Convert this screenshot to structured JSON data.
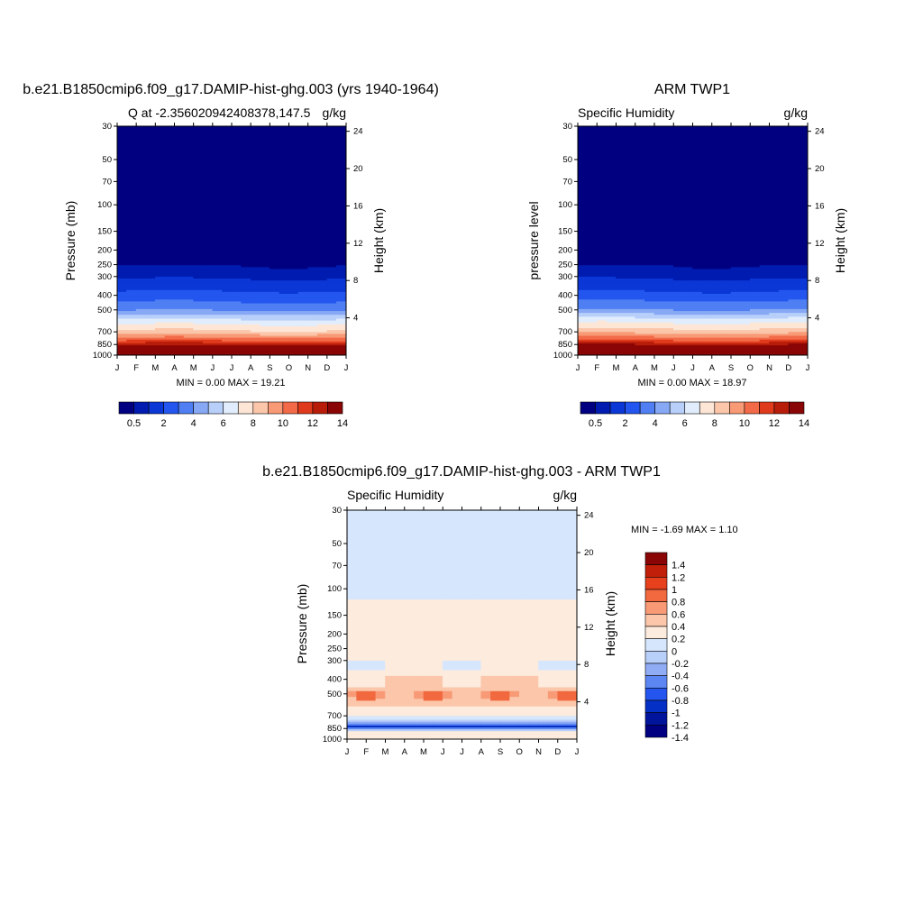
{
  "colors": {
    "scalar_palette": [
      "#000080",
      "#001cb0",
      "#0a37d6",
      "#2356ef",
      "#4f7ff3",
      "#86a8f5",
      "#b8cffa",
      "#e1edfc",
      "#fde6d6",
      "#fbc6aa",
      "#f89a76",
      "#f26a48",
      "#e03a1c",
      "#b81d0a",
      "#8a0505"
    ],
    "diff_palette": [
      "#000080",
      "#00159b",
      "#0530c6",
      "#2456ef",
      "#5c86f2",
      "#8facf5",
      "#b8cffa",
      "#d6e7fd",
      "#fdebdd",
      "#fbc6aa",
      "#f89a76",
      "#f2683f",
      "#e6401c",
      "#c11f09",
      "#8a0505"
    ]
  },
  "panels": [
    {
      "title": "b.e21.B1850cmip6.f09_g17.DAMIP-hist-ghg.003 (yrs 1940-1964)",
      "left_label": "Q at -2.356020942408378,147.5",
      "right_label": "g/kg",
      "ylabel": "Pressure (mb)",
      "ylabel_right": "Height (km)",
      "minmax_text": "MIN =   0.00 MAX =  19.21"
    },
    {
      "title": "ARM TWP1",
      "left_label": "Specific Humidity",
      "right_label": "g/kg",
      "ylabel": "pressure level",
      "ylabel_right": "Height (km)",
      "minmax_text": "MIN =   0.00 MAX =  18.97"
    },
    {
      "title": "b.e21.B1850cmip6.f09_g17.DAMIP-hist-ghg.003 - ARM TWP1",
      "left_label": "Specific Humidity",
      "right_label": "g/kg",
      "ylabel": "Pressure (mb)",
      "ylabel_right": "Height (km)",
      "minmax_text": "MIN =  -1.69 MAX =   1.10"
    }
  ],
  "chart_data": [
    {
      "type": "heatmap",
      "title": "b.e21.B1850cmip6.f09_g17.DAMIP-hist-ghg.003 (yrs 1940-1964)",
      "variable": "Q at -2.356020942408378,147.5",
      "units": "g/kg",
      "xlabel": "",
      "ylabel": "Pressure (mb)",
      "ylabel_right": "Height (km)",
      "x_ticks": [
        "J",
        "F",
        "M",
        "A",
        "M",
        "J",
        "J",
        "A",
        "S",
        "O",
        "N",
        "D",
        "J"
      ],
      "y_ticks": [
        30,
        50,
        70,
        100,
        150,
        200,
        250,
        300,
        400,
        500,
        700,
        850,
        1000
      ],
      "y_ticks_right": [
        24,
        20,
        16,
        12,
        8,
        4
      ],
      "ylim": [
        30,
        1000
      ],
      "y_scale": "log",
      "min": 0.0,
      "max": 19.21,
      "levels": [
        0.5,
        1,
        2,
        3,
        4,
        5,
        6,
        7,
        8,
        9,
        10,
        11,
        12,
        13,
        14
      ],
      "colorbar_labels": [
        "0.5",
        "2",
        "4",
        "6",
        "8",
        "10",
        "12",
        "14"
      ],
      "profile": {
        "p": [
          30,
          200,
          300,
          400,
          500,
          600,
          700,
          800,
          850,
          900,
          1000
        ],
        "q": [
          0,
          0.1,
          0.8,
          2.3,
          3.8,
          6.5,
          8.2,
          10.8,
          12.6,
          14.3,
          18
        ]
      }
    },
    {
      "type": "heatmap",
      "title": "ARM TWP1",
      "variable": "Specific Humidity",
      "units": "g/kg",
      "xlabel": "",
      "ylabel": "pressure level",
      "ylabel_right": "Height (km)",
      "x_ticks": [
        "J",
        "F",
        "M",
        "A",
        "M",
        "J",
        "J",
        "A",
        "S",
        "O",
        "N",
        "D",
        "J"
      ],
      "y_ticks": [
        30,
        50,
        70,
        100,
        150,
        200,
        250,
        300,
        400,
        500,
        700,
        850,
        1000
      ],
      "y_ticks_right": [
        24,
        20,
        16,
        12,
        8,
        4
      ],
      "ylim": [
        30,
        1000
      ],
      "y_scale": "log",
      "min": 0.0,
      "max": 18.97,
      "levels": [
        0.5,
        1,
        2,
        3,
        4,
        5,
        6,
        7,
        8,
        9,
        10,
        11,
        12,
        13,
        14
      ],
      "colorbar_labels": [
        "0.5",
        "2",
        "4",
        "6",
        "8",
        "10",
        "12",
        "14"
      ],
      "profile": {
        "p": [
          30,
          200,
          300,
          400,
          500,
          600,
          700,
          800,
          850,
          900,
          1000
        ],
        "q": [
          0,
          0.1,
          0.8,
          2.3,
          4,
          6.8,
          8.5,
          11,
          12.8,
          14.5,
          17.5
        ]
      }
    },
    {
      "type": "heatmap",
      "title": "b.e21.B1850cmip6.f09_g17.DAMIP-hist-ghg.003 - ARM TWP1",
      "variable": "Specific Humidity",
      "units": "g/kg",
      "xlabel": "",
      "ylabel": "Pressure (mb)",
      "ylabel_right": "Height (km)",
      "x_ticks": [
        "J",
        "F",
        "M",
        "A",
        "M",
        "J",
        "J",
        "A",
        "S",
        "O",
        "N",
        "D",
        "J"
      ],
      "y_ticks": [
        30,
        50,
        70,
        100,
        150,
        200,
        250,
        300,
        400,
        500,
        700,
        850,
        1000
      ],
      "y_ticks_right": [
        24,
        20,
        16,
        12,
        8,
        4
      ],
      "ylim": [
        30,
        1000
      ],
      "y_scale": "log",
      "min": -1.69,
      "max": 1.1,
      "levels": [
        -1.4,
        -1.2,
        -1,
        -0.8,
        -0.6,
        -0.4,
        -0.2,
        0,
        0.2,
        0.4,
        0.6,
        0.8,
        1,
        1.2,
        1.4
      ],
      "colorbar_labels": [
        "1.4",
        "1.2",
        "1",
        "0.8",
        "0.6",
        "0.4",
        "0.2",
        "0",
        "-0.2",
        "-0.4",
        "-0.6",
        "-0.8",
        "-1",
        "-1.2",
        "-1.4"
      ],
      "profile": {
        "p": [
          30,
          110,
          125,
          300,
          480,
          520,
          700,
          800,
          830,
          850,
          900,
          1000
        ],
        "q": [
          -0.05,
          -0.05,
          0.05,
          0.05,
          0.35,
          0.35,
          0.05,
          -0.6,
          -1.2,
          -0.7,
          0.1,
          0.1
        ]
      }
    }
  ]
}
